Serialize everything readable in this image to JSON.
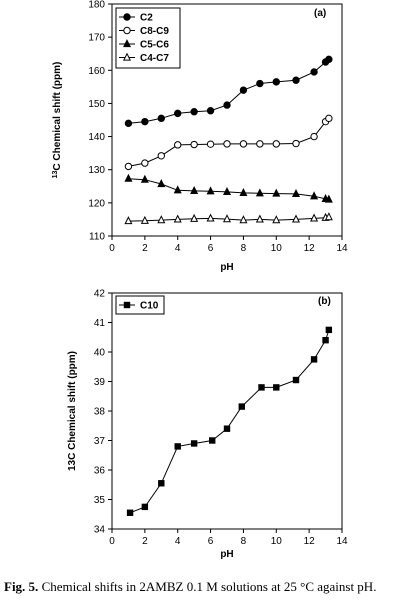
{
  "caption": {
    "label": "Fig. 5.",
    "text": "Chemical shifts in 2AMBZ 0.1 M solutions at 25 °C against pH."
  },
  "chart_data": [
    {
      "type": "line",
      "panel_label": "(a)",
      "xlabel": "pH",
      "ylabel_sup": "13",
      "ylabel": "C Chemical shift (ppm)",
      "xlim": [
        0,
        14
      ],
      "ylim": [
        110,
        180
      ],
      "xticks": [
        0,
        2,
        4,
        6,
        8,
        10,
        12,
        14
      ],
      "yticks": [
        110,
        120,
        130,
        140,
        150,
        160,
        170,
        180
      ],
      "grid": false,
      "legend_position": "top-left",
      "series": [
        {
          "name": "C2",
          "marker": "filled-circle",
          "x": [
            1.0,
            2.0,
            3.0,
            4.0,
            5.0,
            6.0,
            7.0,
            8.0,
            9.0,
            10.0,
            11.2,
            12.3,
            13.0,
            13.2
          ],
          "y": [
            144.0,
            144.5,
            145.5,
            147.0,
            147.5,
            147.8,
            149.5,
            154.0,
            156.0,
            156.5,
            157.0,
            159.5,
            162.5,
            163.3
          ]
        },
        {
          "name": "C8-C9",
          "marker": "open-circle",
          "x": [
            1.0,
            2.0,
            3.0,
            4.0,
            5.0,
            6.0,
            7.0,
            8.0,
            9.0,
            10.0,
            11.2,
            12.3,
            13.0,
            13.2
          ],
          "y": [
            131.0,
            132.0,
            134.2,
            137.5,
            137.6,
            137.7,
            137.8,
            137.8,
            137.8,
            137.8,
            137.9,
            140.0,
            144.5,
            145.5
          ]
        },
        {
          "name": "C5-C6",
          "marker": "filled-triangle",
          "x": [
            1.0,
            2.0,
            3.0,
            4.0,
            5.0,
            6.0,
            7.0,
            8.0,
            9.0,
            10.0,
            11.2,
            12.3,
            13.0,
            13.2
          ],
          "y": [
            127.3,
            127.0,
            125.7,
            123.8,
            123.6,
            123.5,
            123.3,
            123.0,
            122.9,
            122.8,
            122.7,
            122.0,
            121.2,
            121.0
          ]
        },
        {
          "name": "C4-C7",
          "marker": "open-triangle",
          "x": [
            1.0,
            2.0,
            3.0,
            4.0,
            5.0,
            6.0,
            7.0,
            8.0,
            9.0,
            10.0,
            11.2,
            12.3,
            13.0,
            13.2
          ],
          "y": [
            114.5,
            114.6,
            114.8,
            115.0,
            115.2,
            115.3,
            115.1,
            114.8,
            115.0,
            114.8,
            115.0,
            115.3,
            115.5,
            115.7
          ]
        }
      ]
    },
    {
      "type": "line",
      "panel_label": "(b)",
      "xlabel": "pH",
      "ylabel": "13C Chemical shift (ppm)",
      "xlim": [
        0,
        14
      ],
      "ylim": [
        34,
        42
      ],
      "xticks": [
        0,
        2,
        4,
        6,
        8,
        10,
        12,
        14
      ],
      "yticks": [
        34,
        35,
        36,
        37,
        38,
        39,
        40,
        41,
        42
      ],
      "grid": false,
      "legend_position": "top-left",
      "series": [
        {
          "name": "C10",
          "marker": "filled-square",
          "x": [
            1.1,
            2.0,
            3.0,
            4.0,
            5.0,
            6.1,
            7.0,
            7.9,
            9.1,
            10.0,
            11.2,
            12.3,
            13.0,
            13.2
          ],
          "y": [
            34.55,
            34.75,
            35.55,
            36.8,
            36.9,
            37.0,
            37.4,
            38.15,
            38.8,
            38.8,
            39.05,
            39.75,
            40.4,
            40.75
          ]
        }
      ]
    }
  ]
}
